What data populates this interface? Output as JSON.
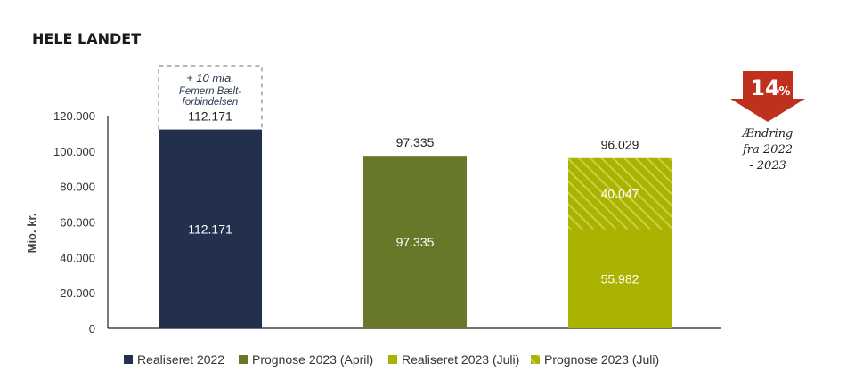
{
  "title": "HELE LANDET",
  "chart_data": {
    "type": "bar",
    "stacked": true,
    "ylabel": "Mio. kr.",
    "ylim": [
      0,
      120000
    ],
    "yticks": [
      "0",
      "20.000",
      "40.000",
      "60.000",
      "80.000",
      "100.000",
      "120.000"
    ],
    "ytick_values": [
      0,
      20000,
      40000,
      60000,
      80000,
      100000,
      120000
    ],
    "grid": false,
    "legend_position": "bottom",
    "categories": [
      "Realiseret 2022",
      "Prognose 2023 (April)",
      "2023 (Juli)"
    ],
    "bars": [
      {
        "total": 112171,
        "total_label": "112.171",
        "segments": [
          {
            "series": "Realiseret 2022",
            "value": 112171,
            "label": "112.171",
            "color": "#23304d"
          }
        ]
      },
      {
        "total": 97335,
        "total_label": "97.335",
        "segments": [
          {
            "series": "Prognose 2023 (April)",
            "value": 97335,
            "label": "97.335",
            "color": "#687829"
          }
        ]
      },
      {
        "total": 96029,
        "total_label": "96.029",
        "segments": [
          {
            "series": "Realiseret 2023 (Juli)",
            "value": 55982,
            "label": "55.982",
            "color": "#aab400"
          },
          {
            "series": "Prognose 2023 (Juli)",
            "value": 40047,
            "label": "40.047",
            "color": "#aab400",
            "pattern": "hatched"
          }
        ]
      }
    ],
    "series": [
      {
        "name": "Realiseret 2022",
        "color": "#23304d",
        "values": [
          112171,
          0,
          0
        ]
      },
      {
        "name": "Prognose 2023 (April)",
        "color": "#687829",
        "values": [
          0,
          97335,
          0
        ]
      },
      {
        "name": "Realiseret 2023 (Juli)",
        "color": "#aab400",
        "values": [
          0,
          0,
          55982
        ]
      },
      {
        "name": "Prognose 2023 (Juli)",
        "color": "#aab400",
        "pattern": "hatched",
        "values": [
          0,
          0,
          40047
        ]
      }
    ],
    "annotation_box": {
      "lines": [
        "+ 10 mia.",
        "Femern Bælt-",
        "forbindelsen"
      ],
      "category_index": 0,
      "value": 10000
    },
    "change_badge": {
      "number": "14",
      "unit": "%",
      "color": "#c0301f",
      "caption_lines": [
        "Ændring",
        "fra 2022",
        "- 2023"
      ]
    }
  }
}
